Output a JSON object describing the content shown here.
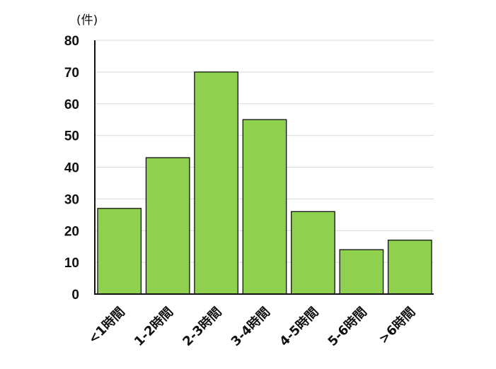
{
  "chart_data": {
    "type": "bar",
    "title": "",
    "xlabel": "",
    "ylabel": "(件)",
    "categories": [
      "<1時間",
      "1-2時間",
      "2-3時間",
      "3-4時間",
      "4-5時間",
      "5-6時間",
      ">6時間"
    ],
    "values": [
      27,
      43,
      70,
      55,
      26,
      14,
      17
    ],
    "ylim": [
      0,
      80
    ],
    "yticks": [
      0,
      10,
      20,
      30,
      40,
      50,
      60,
      70,
      80
    ],
    "grid": true,
    "legend": "none",
    "colors": {
      "bar_fill": "#8fd14f",
      "bar_stroke": "#111111",
      "axis": "#111111",
      "grid": "#d9d9d9"
    }
  }
}
